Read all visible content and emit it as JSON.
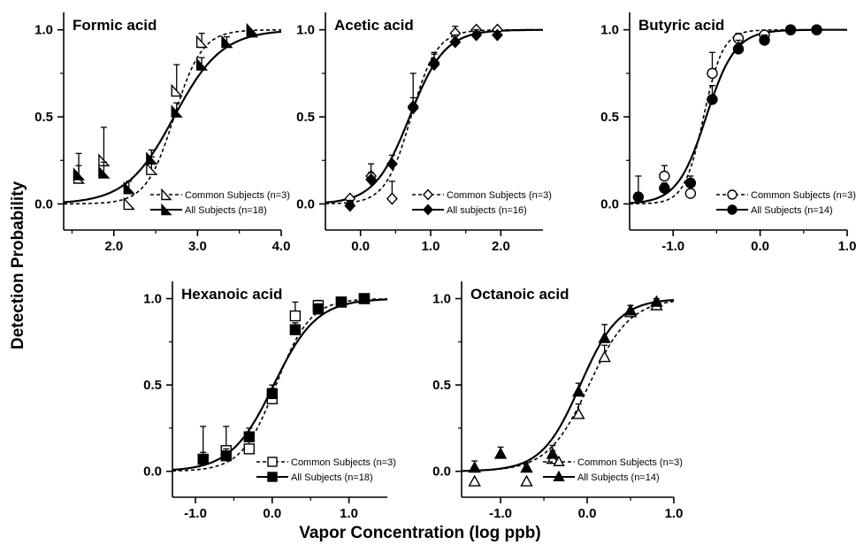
{
  "figure": {
    "ylabel": "Detection Probability",
    "xlabel": "Vapor Concentration (log ppb)"
  },
  "chart_data": [
    {
      "type": "scatter",
      "title": "Formic acid",
      "xlim": [
        1.4,
        4.0
      ],
      "ylim": [
        -0.15,
        1.1
      ],
      "xticks": [
        2.0,
        3.0,
        4.0
      ],
      "xtick_labels": [
        "2.0",
        "3.0",
        "4.0"
      ],
      "yticks": [
        0.0,
        0.5,
        1.0
      ],
      "ytick_labels": [
        "0.0",
        "0.5",
        "1.0"
      ],
      "series": [
        {
          "name": "Common Subjects (n=3)",
          "marker": "triangle-right",
          "filled": false,
          "line": "dashed",
          "points": [
            [
              1.58,
              0.15
            ],
            [
              1.88,
              0.25
            ],
            [
              2.18,
              0.0
            ],
            [
              2.45,
              0.2
            ],
            [
              2.75,
              0.65
            ],
            [
              3.05,
              0.93
            ],
            [
              3.65,
              1.0
            ]
          ],
          "errors": [
            0.14,
            0.19,
            0,
            0.07,
            0.15,
            0.05,
            0
          ],
          "fit": {
            "x50": 2.72,
            "slope": 6.0
          }
        },
        {
          "name": "All Subjects (n=18)",
          "marker": "triangle-right",
          "filled": true,
          "line": "solid",
          "points": [
            [
              1.58,
              0.17
            ],
            [
              1.88,
              0.18
            ],
            [
              2.18,
              0.09
            ],
            [
              2.45,
              0.26
            ],
            [
              2.75,
              0.53
            ],
            [
              3.05,
              0.8
            ],
            [
              3.35,
              0.93
            ],
            [
              3.65,
              0.99
            ]
          ],
          "errors": [
            0.05,
            0.06,
            0.04,
            0.05,
            0.05,
            0.04,
            0.03,
            0
          ],
          "fit": {
            "x50": 2.72,
            "slope": 3.5
          }
        }
      ]
    },
    {
      "type": "scatter",
      "title": "Acetic acid",
      "xlim": [
        -0.5,
        2.6
      ],
      "ylim": [
        -0.15,
        1.1
      ],
      "xticks": [
        0.0,
        1.0,
        2.0
      ],
      "xtick_labels": [
        "0.0",
        "1.0",
        "2.0"
      ],
      "yticks": [
        0.0,
        0.5,
        1.0
      ],
      "ytick_labels": [
        "0.0",
        "0.5",
        "1.0"
      ],
      "series": [
        {
          "name": "Common Subjects (n=3)",
          "marker": "diamond",
          "filled": false,
          "line": "dashed",
          "points": [
            [
              -0.15,
              0.03
            ],
            [
              0.15,
              0.16
            ],
            [
              0.45,
              0.03
            ],
            [
              0.75,
              0.55
            ],
            [
              1.05,
              0.8
            ],
            [
              1.35,
              0.98
            ],
            [
              1.65,
              1.0
            ],
            [
              1.95,
              1.0
            ]
          ],
          "errors": [
            0,
            0.07,
            0.1,
            0.2,
            0.07,
            0.04,
            0,
            0
          ],
          "fit": {
            "x50": 0.72,
            "slope": 5.5
          }
        },
        {
          "name": "All subjects (n=16)",
          "marker": "diamond",
          "filled": true,
          "line": "solid",
          "points": [
            [
              -0.15,
              -0.01
            ],
            [
              0.15,
              0.14
            ],
            [
              0.45,
              0.23
            ],
            [
              0.75,
              0.56
            ],
            [
              1.05,
              0.81
            ],
            [
              1.35,
              0.93
            ],
            [
              1.65,
              0.97
            ],
            [
              1.95,
              0.97
            ]
          ],
          "errors": [
            0.03,
            0.04,
            0.05,
            0.05,
            0.05,
            0.04,
            0.03,
            0.02
          ],
          "fit": {
            "x50": 0.7,
            "slope": 4.0
          }
        }
      ]
    },
    {
      "type": "scatter",
      "title": "Butyric acid",
      "xlim": [
        -1.5,
        1.0
      ],
      "ylim": [
        -0.15,
        1.1
      ],
      "xticks": [
        -1.0,
        0.0,
        1.0
      ],
      "xtick_labels": [
        "-1.0",
        "0.0",
        "1.0"
      ],
      "yticks": [
        0.0,
        0.5,
        1.0
      ],
      "ytick_labels": [
        "0.0",
        "0.5",
        "1.0"
      ],
      "series": [
        {
          "name": "Common Subjects (n=3)",
          "marker": "circle",
          "filled": false,
          "line": "dashed",
          "points": [
            [
              -1.1,
              0.16
            ],
            [
              -0.8,
              0.06
            ],
            [
              -0.55,
              0.75
            ],
            [
              -0.25,
              0.95
            ],
            [
              0.05,
              0.97
            ],
            [
              0.35,
              1.0
            ],
            [
              0.65,
              1.0
            ]
          ],
          "errors": [
            0.06,
            0.05,
            0.12,
            0.03,
            0,
            0,
            0
          ],
          "fit": {
            "x50": -0.65,
            "slope": 9.0
          }
        },
        {
          "name": "All Subjects (n=14)",
          "marker": "circle",
          "filled": true,
          "line": "solid",
          "points": [
            [
              -1.4,
              0.04
            ],
            [
              -1.1,
              0.09
            ],
            [
              -0.8,
              0.12
            ],
            [
              -0.55,
              0.6
            ],
            [
              -0.25,
              0.89
            ],
            [
              0.05,
              0.94
            ],
            [
              0.35,
              1.0
            ],
            [
              0.65,
              1.0
            ]
          ],
          "errors": [
            0.12,
            0.03,
            0.04,
            0.08,
            0.05,
            0.03,
            0,
            0
          ],
          "fit": {
            "x50": -0.62,
            "slope": 6.0
          }
        }
      ]
    },
    {
      "type": "scatter",
      "title": "Hexanoic acid",
      "xlim": [
        -1.3,
        1.5
      ],
      "ylim": [
        -0.15,
        1.1
      ],
      "xticks": [
        -1.0,
        0.0,
        1.0
      ],
      "xtick_labels": [
        "-1.0",
        "0.0",
        "1.0"
      ],
      "yticks": [
        0.0,
        0.5,
        1.0
      ],
      "ytick_labels": [
        "0.0",
        "0.5",
        "1.0"
      ],
      "series": [
        {
          "name": "Common Subjects (n=3)",
          "marker": "square",
          "filled": false,
          "line": "dashed",
          "points": [
            [
              -0.9,
              0.07
            ],
            [
              -0.6,
              0.12
            ],
            [
              -0.3,
              0.13
            ],
            [
              0.0,
              0.42
            ],
            [
              0.3,
              0.9
            ],
            [
              0.6,
              0.96
            ],
            [
              0.9,
              0.98
            ],
            [
              1.2,
              1.0
            ]
          ],
          "errors": [
            0.19,
            0.14,
            0.08,
            0.06,
            0.08,
            0.03,
            0,
            0
          ],
          "fit": {
            "x50": 0.05,
            "slope": 4.5
          }
        },
        {
          "name": "All Subjects (n=18)",
          "marker": "square",
          "filled": true,
          "line": "solid",
          "points": [
            [
              -0.9,
              0.07
            ],
            [
              -0.6,
              0.09
            ],
            [
              -0.3,
              0.2
            ],
            [
              0.0,
              0.45
            ],
            [
              0.3,
              0.82
            ],
            [
              0.6,
              0.94
            ],
            [
              0.9,
              0.98
            ],
            [
              1.2,
              1.0
            ]
          ],
          "errors": [
            0.04,
            0.04,
            0.05,
            0.05,
            0.04,
            0.03,
            0.02,
            0
          ],
          "fit": {
            "x50": 0.02,
            "slope": 3.6
          }
        }
      ]
    },
    {
      "type": "scatter",
      "title": "Octanoic acid",
      "xlim": [
        -1.45,
        1.0
      ],
      "ylim": [
        -0.15,
        1.1
      ],
      "xticks": [
        -1.0,
        0.0,
        1.0
      ],
      "xtick_labels": [
        "-1.0",
        "0.0",
        "1.0"
      ],
      "yticks": [
        0.0,
        0.5,
        1.0
      ],
      "ytick_labels": [
        "0.0",
        "0.5",
        "1.0"
      ],
      "series": [
        {
          "name": "Common Subjects (n=3)",
          "marker": "triangle-up",
          "filled": false,
          "line": "dashed",
          "points": [
            [
              -1.3,
              -0.06
            ],
            [
              -0.7,
              -0.06
            ],
            [
              -0.4,
              0.07
            ],
            [
              -0.1,
              0.33
            ],
            [
              0.2,
              0.66
            ],
            [
              0.5,
              0.92
            ],
            [
              0.8,
              0.96
            ]
          ],
          "errors": [
            0,
            0,
            0.05,
            0.06,
            0.07,
            0.04,
            0.03
          ],
          "fit": {
            "x50": 0.02,
            "slope": 4.2
          }
        },
        {
          "name": "All Subjects (n=14)",
          "marker": "triangle-up",
          "filled": true,
          "line": "solid",
          "points": [
            [
              -1.3,
              0.02
            ],
            [
              -1.0,
              0.1
            ],
            [
              -0.7,
              0.02
            ],
            [
              -0.4,
              0.1
            ],
            [
              -0.1,
              0.46
            ],
            [
              0.2,
              0.77
            ],
            [
              0.5,
              0.93
            ],
            [
              0.8,
              0.98
            ]
          ],
          "errors": [
            0.04,
            0.04,
            0.03,
            0.05,
            0.05,
            0.08,
            0.03,
            0.02
          ],
          "fit": {
            "x50": -0.08,
            "slope": 4.5
          }
        }
      ]
    }
  ]
}
